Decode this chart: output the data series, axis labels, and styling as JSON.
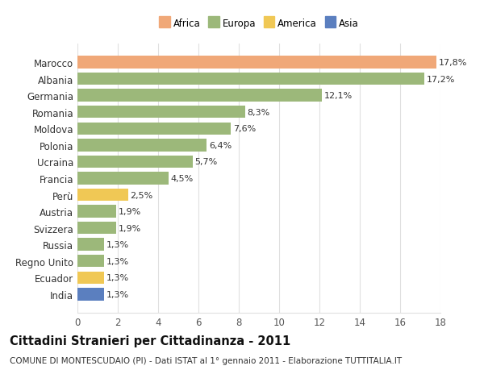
{
  "categories": [
    "India",
    "Ecuador",
    "Regno Unito",
    "Russia",
    "Svizzera",
    "Austria",
    "Perù",
    "Francia",
    "Ucraina",
    "Polonia",
    "Moldova",
    "Romania",
    "Germania",
    "Albania",
    "Marocco"
  ],
  "values": [
    1.3,
    1.3,
    1.3,
    1.3,
    1.9,
    1.9,
    2.5,
    4.5,
    5.7,
    6.4,
    7.6,
    8.3,
    12.1,
    17.2,
    17.8
  ],
  "labels": [
    "1,3%",
    "1,3%",
    "1,3%",
    "1,3%",
    "1,9%",
    "1,9%",
    "2,5%",
    "4,5%",
    "5,7%",
    "6,4%",
    "7,6%",
    "8,3%",
    "12,1%",
    "17,2%",
    "17,8%"
  ],
  "colors": [
    "#5b7fbf",
    "#f0c855",
    "#9cb87a",
    "#9cb87a",
    "#9cb87a",
    "#9cb87a",
    "#f0c855",
    "#9cb87a",
    "#9cb87a",
    "#9cb87a",
    "#9cb87a",
    "#9cb87a",
    "#9cb87a",
    "#9cb87a",
    "#f0a878"
  ],
  "legend_labels": [
    "Africa",
    "Europa",
    "America",
    "Asia"
  ],
  "legend_colors": [
    "#f0a878",
    "#9cb87a",
    "#f0c855",
    "#5b7fbf"
  ],
  "title": "Cittadini Stranieri per Cittadinanza - 2011",
  "subtitle": "COMUNE DI MONTESCUDAIO (PI) - Dati ISTAT al 1° gennaio 2011 - Elaborazione TUTTITALIA.IT",
  "xlim": [
    0,
    18
  ],
  "xticks": [
    0,
    2,
    4,
    6,
    8,
    10,
    12,
    14,
    16,
    18
  ],
  "bg_color": "#ffffff",
  "plot_bg_color": "#ffffff",
  "grid_color": "#e0e0e0",
  "bar_height": 0.75,
  "title_fontsize": 10.5,
  "subtitle_fontsize": 7.5,
  "tick_fontsize": 8.5,
  "label_fontsize": 8
}
